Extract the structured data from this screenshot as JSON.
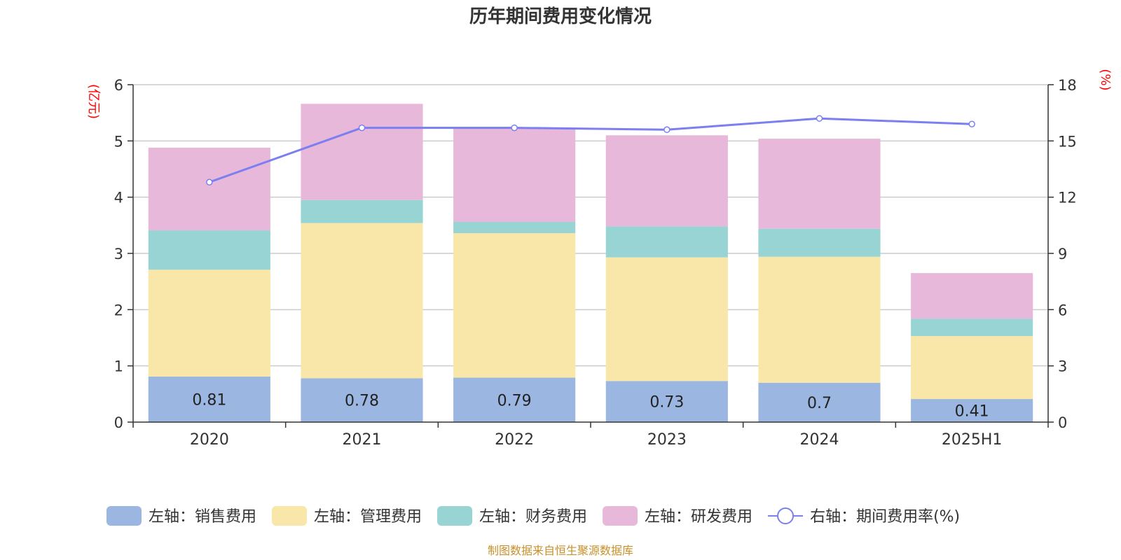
{
  "chart_data": {
    "type": "bar",
    "title": "历年期间费用变化情况",
    "categories": [
      "2020",
      "2021",
      "2022",
      "2023",
      "2024",
      "2025H1"
    ],
    "stacked": true,
    "left_axis": {
      "unit": "(亿元)",
      "ylim": [
        0,
        6
      ],
      "ticks": [
        0,
        1,
        2,
        3,
        4,
        5,
        6
      ]
    },
    "right_axis": {
      "unit": "(%)",
      "ylim": [
        0,
        18
      ],
      "ticks": [
        0,
        3,
        6,
        9,
        12,
        15,
        18
      ]
    },
    "series": [
      {
        "name": "左轴：销售费用",
        "axis": "left",
        "kind": "bar",
        "color": "#9bb6e0",
        "values": [
          0.81,
          0.78,
          0.79,
          0.73,
          0.7,
          0.41
        ],
        "labels": [
          "0.81",
          "0.78",
          "0.79",
          "0.73",
          "0.7",
          "0.41"
        ]
      },
      {
        "name": "左轴：管理费用",
        "axis": "left",
        "kind": "bar",
        "color": "#f8e7a8",
        "values": [
          1.9,
          2.76,
          2.57,
          2.2,
          2.24,
          1.12
        ]
      },
      {
        "name": "左轴：财务费用",
        "axis": "left",
        "kind": "bar",
        "color": "#98d4d4",
        "values": [
          0.7,
          0.41,
          0.2,
          0.55,
          0.5,
          0.31
        ]
      },
      {
        "name": "左轴：研发费用",
        "axis": "left",
        "kind": "bar",
        "color": "#e8b8da",
        "values": [
          1.47,
          1.71,
          1.67,
          1.62,
          1.6,
          0.81
        ]
      },
      {
        "name": "右轴：期间费用率(%)",
        "axis": "right",
        "kind": "line",
        "color": "#7b7ff0",
        "values": [
          12.8,
          15.7,
          15.7,
          15.6,
          16.2,
          15.9
        ]
      }
    ],
    "grid": true,
    "legend_position": "bottom",
    "source": "制图数据来自恒生聚源数据库"
  }
}
